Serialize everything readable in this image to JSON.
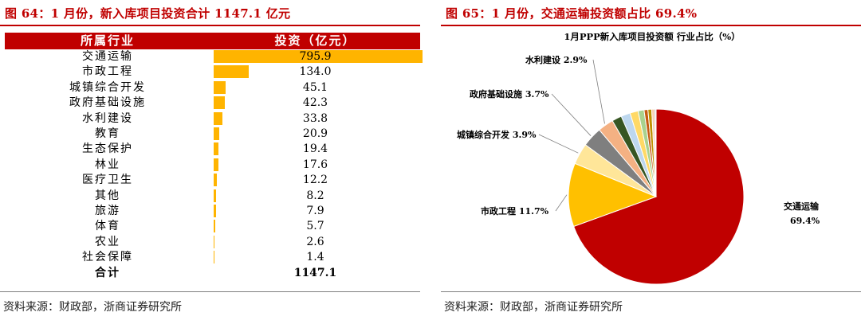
{
  "left_panel": {
    "title": "图 64：1 月份，新入库项目投资合计 1147.1 亿元",
    "source": "资料来源：财政部，浙商证券研究所"
  },
  "right_panel": {
    "title": "图 65：1 月份，交通运输投资额占比 69.4%",
    "source": "资料来源：财政部，浙商证券研究所"
  },
  "colors": {
    "accent": "#c00000",
    "bar": "#ffb400"
  },
  "chart_data": [
    {
      "type": "bar",
      "orientation": "horizontal",
      "header": {
        "category": "所属行业",
        "value": "投资（亿元）"
      },
      "categories": [
        "交通运输",
        "市政工程",
        "城镇综合开发",
        "政府基础设施",
        "水利建设",
        "教育",
        "生态保护",
        "林业",
        "医疗卫生",
        "其他",
        "旅游",
        "体育",
        "农业",
        "社会保障"
      ],
      "values": [
        795.9,
        134.0,
        45.1,
        42.3,
        33.8,
        20.9,
        19.4,
        17.6,
        12.2,
        8.2,
        7.9,
        5.7,
        2.6,
        1.4
      ],
      "value_labels": [
        "795.9",
        "134.0",
        "45.1",
        "42.3",
        "33.8",
        "20.9",
        "19.4",
        "17.6",
        "12.2",
        "8.2",
        "7.9",
        "5.7",
        "2.6",
        "1.4"
      ],
      "total_label": "合计",
      "total_value": "1147.1"
    },
    {
      "type": "pie",
      "title": "1月PPP新入库项目投资额  行业占比（%）",
      "slices": [
        {
          "name": "交通运输",
          "value": 69.4,
          "color": "#c00000",
          "label": "交通运输",
          "pct": "69.4%"
        },
        {
          "name": "市政工程",
          "value": 11.7,
          "color": "#ffc000",
          "label": "市政工程 11.7%"
        },
        {
          "name": "城镇综合开发",
          "value": 3.9,
          "color": "#ffe699",
          "label": "城镇综合开发 3.9%"
        },
        {
          "name": "政府基础设施",
          "value": 3.7,
          "color": "#7f7f7f",
          "label": "政府基础设施 3.7%"
        },
        {
          "name": "水利建设",
          "value": 2.9,
          "color": "#f4b183",
          "label": "水利建设 2.9%"
        },
        {
          "name": "教育",
          "value": 1.8,
          "color": "#375623"
        },
        {
          "name": "生态保护",
          "value": 1.7,
          "color": "#bdd7ee"
        },
        {
          "name": "林业",
          "value": 1.5,
          "color": "#ffd966"
        },
        {
          "name": "医疗卫生",
          "value": 1.1,
          "color": "#a9d18e"
        },
        {
          "name": "其他",
          "value": 0.7,
          "color": "#c55a11"
        },
        {
          "name": "旅游",
          "value": 0.7,
          "color": "#bf9000"
        },
        {
          "name": "体育",
          "value": 0.5,
          "color": "#f8cbad"
        },
        {
          "name": "农业",
          "value": 0.2,
          "color": "#404040"
        },
        {
          "name": "社会保障",
          "value": 0.1,
          "color": "#9dc3e6"
        }
      ]
    }
  ]
}
